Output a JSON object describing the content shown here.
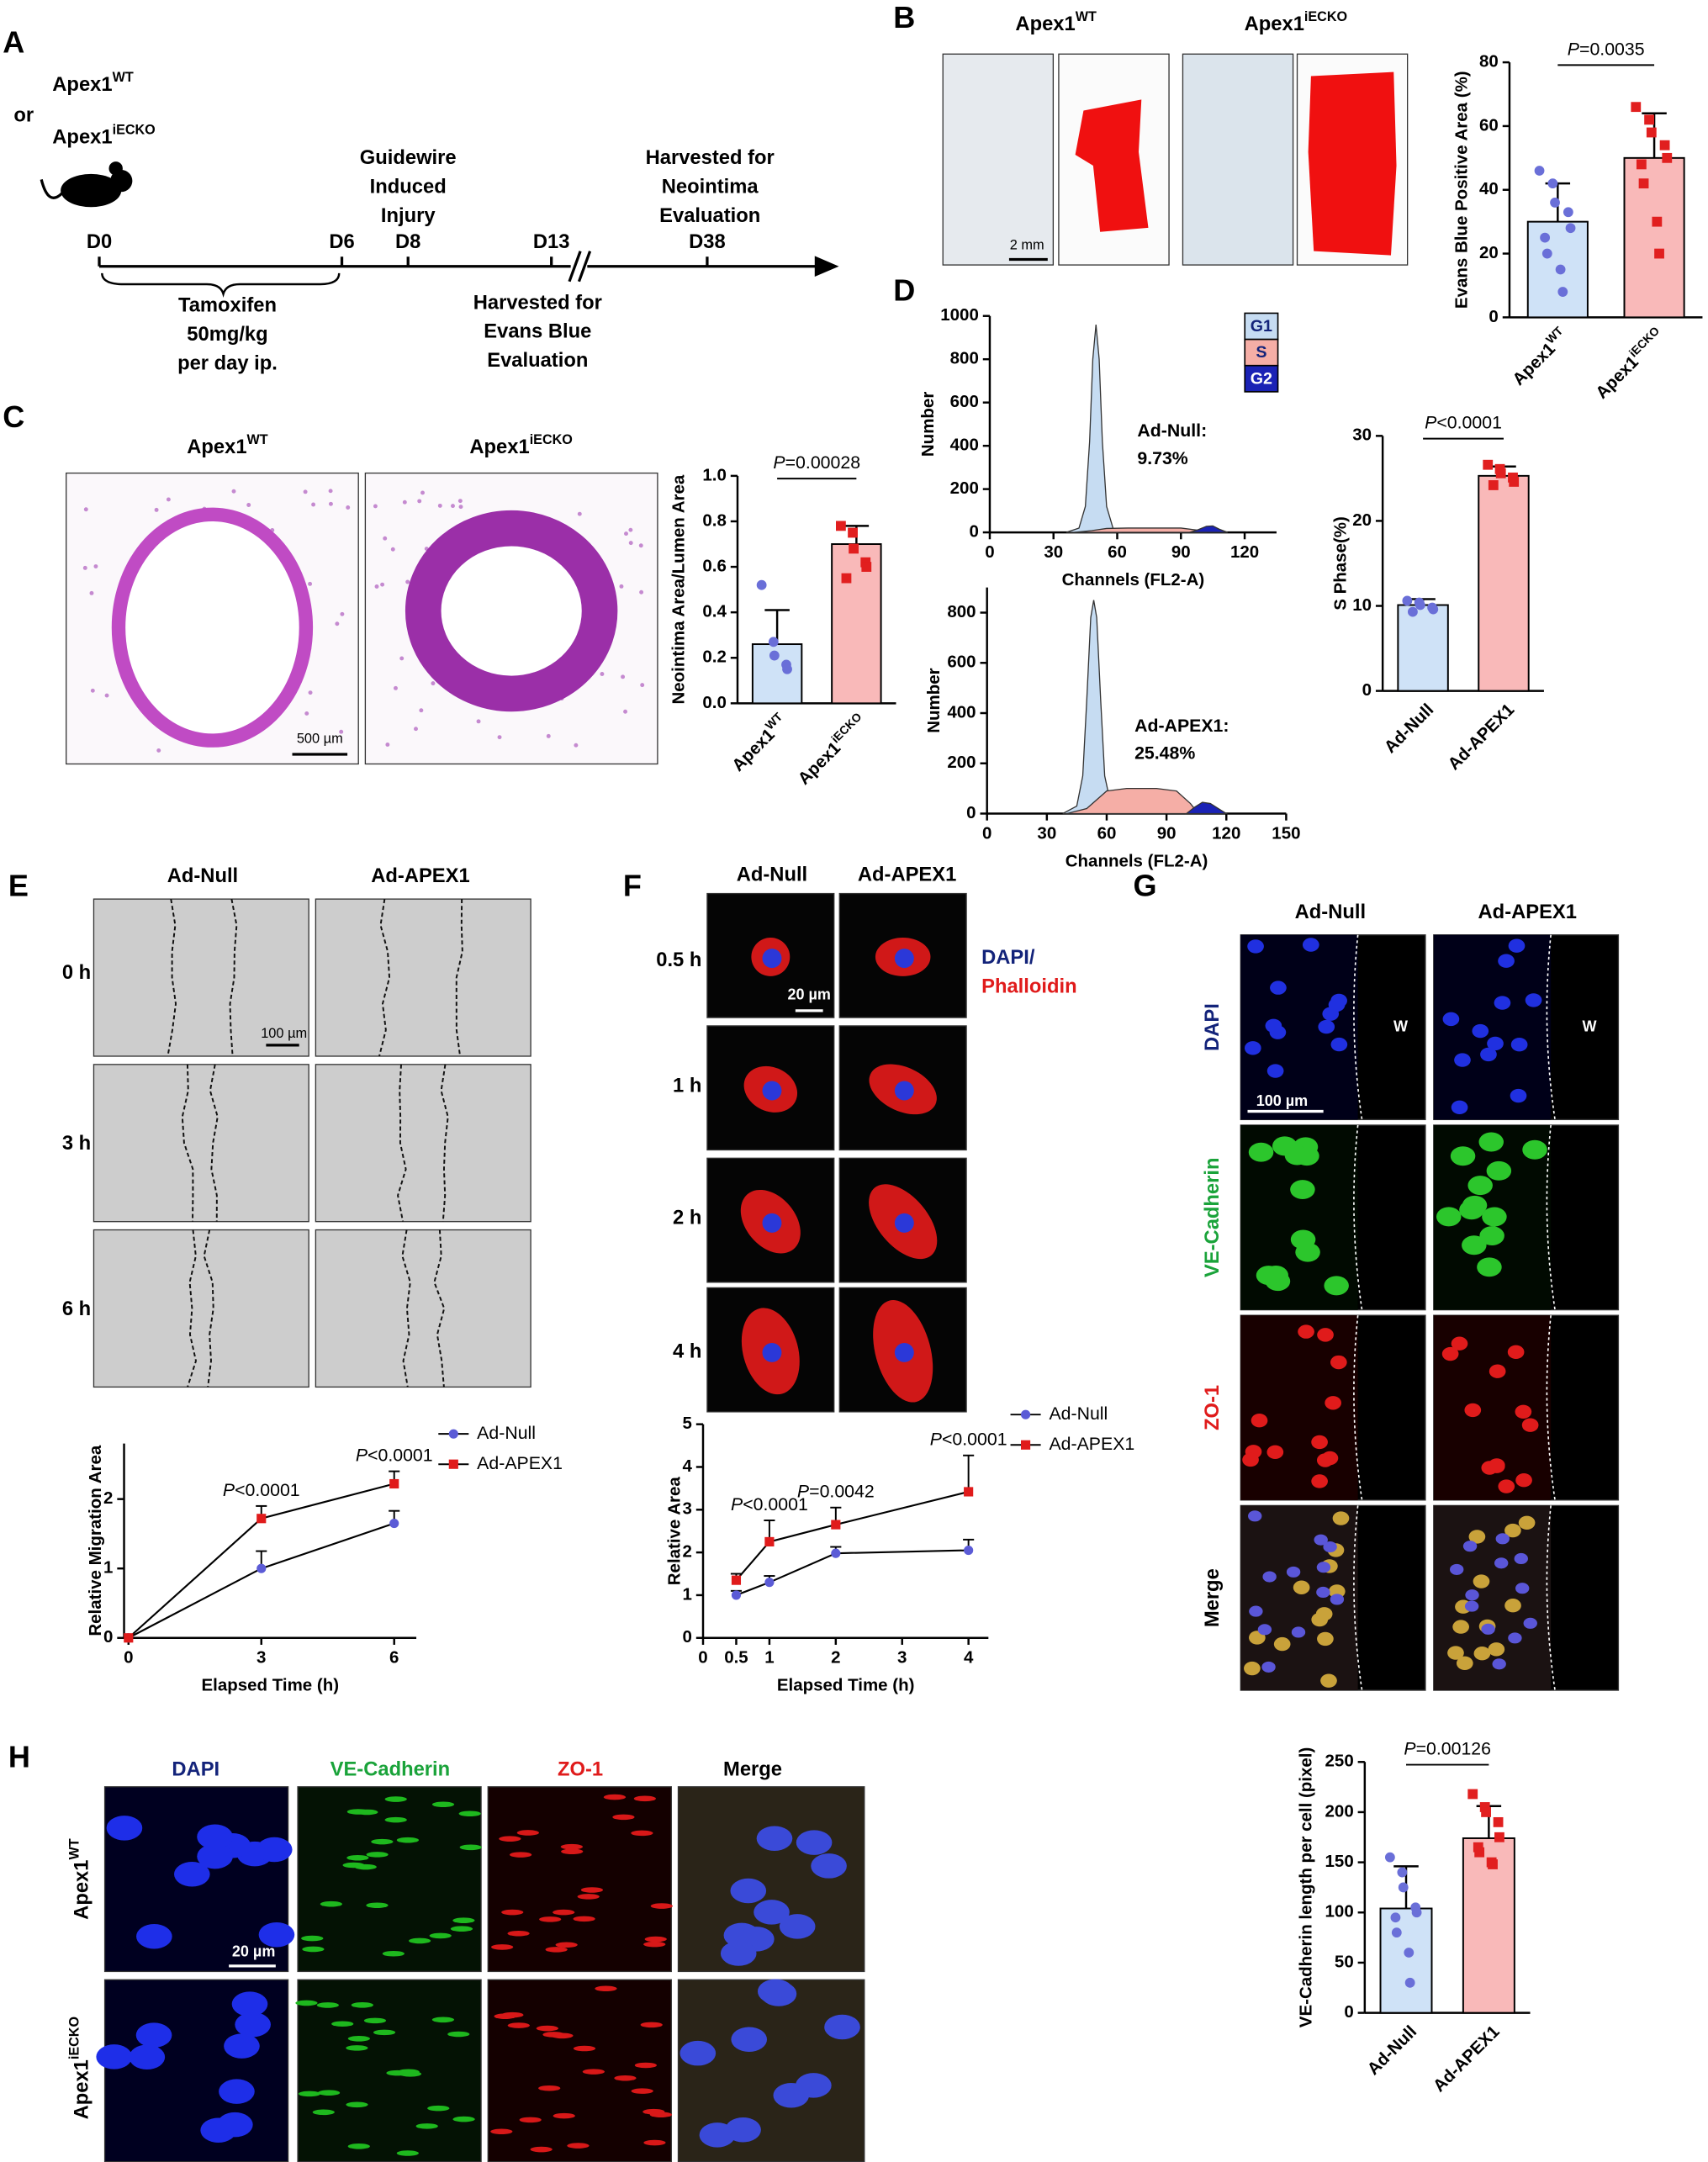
{
  "figure": {
    "panels": [
      "A",
      "B",
      "C",
      "D",
      "E",
      "F",
      "G",
      "H"
    ],
    "a": {
      "genotypes": [
        "Apex1WT",
        "Apex1iECKO"
      ],
      "or": "or",
      "days": [
        "D0",
        "D6",
        "D8",
        "D13",
        "D38"
      ],
      "injury": [
        "Guidewire",
        "Induced",
        "Injury"
      ],
      "neointima": [
        "Harvested for",
        "Neointima",
        "Evaluation"
      ],
      "tamoxifen": [
        "Tamoxifen",
        "50mg/kg",
        "per day ip."
      ],
      "evans": [
        "Harvested for",
        "Evans Blue",
        "Evaluation"
      ]
    },
    "b": {
      "columns": [
        "Apex1WT",
        "Apex1iECKO"
      ],
      "scale": "2 mm"
    },
    "c": {
      "columns": [
        "Apex1WT",
        "Apex1iECKO"
      ],
      "scale": "500 µm"
    },
    "e": {
      "columns": [
        "Ad-Null",
        "Ad-APEX1"
      ],
      "rows": [
        "0 h",
        "3 h",
        "6 h"
      ],
      "scale": "100 µm"
    },
    "f": {
      "columns": [
        "Ad-Null",
        "Ad-APEX1"
      ],
      "rows": [
        "0.5 h",
        "1 h",
        "2 h",
        "4 h"
      ],
      "stain": [
        "DAPI/",
        "Phalloidin"
      ],
      "scale": "20 µm"
    },
    "g": {
      "columns": [
        "Ad-Null",
        "Ad-APEX1"
      ],
      "rows": [
        "DAPI",
        "VE-Cadherin",
        "ZO-1",
        "Merge"
      ],
      "wound": [
        "W",
        "W"
      ],
      "scale": "100 µm"
    },
    "h": {
      "columns": [
        "DAPI",
        "VE-Cadherin",
        "ZO-1",
        "Merge"
      ],
      "rows": [
        "Apex1WT",
        "Apex1iECKO"
      ],
      "scale": "20 µm"
    }
  },
  "chart_data": [
    {
      "type": "bar",
      "ylabel": "Evans Blue Positive Area (%)",
      "annotation": "P=0.0035",
      "categories": [
        "Apex1WT",
        "Apex1iECKO"
      ],
      "values": [
        30,
        50
      ],
      "errors": [
        12,
        14
      ],
      "points": [
        [
          46,
          42,
          36,
          33,
          28,
          25,
          20,
          15,
          8
        ],
        [
          66,
          62,
          58,
          54,
          50,
          48,
          42,
          30,
          20
        ]
      ],
      "colors": [
        "#cfe2f7",
        "#f9b9b9"
      ],
      "point_colors": [
        "#6a6fd8",
        "#e11f1f"
      ],
      "ylim": [
        0,
        80
      ],
      "yticks": [
        0,
        20,
        40,
        60,
        80
      ]
    },
    {
      "type": "bar",
      "ylabel": "Neointima Area/Lumen Area",
      "annotation": "P=0.00028",
      "categories": [
        "Apex1WT",
        "Apex1iECKO"
      ],
      "values": [
        0.26,
        0.7
      ],
      "errors": [
        0.15,
        0.08
      ],
      "points": [
        [
          0.52,
          0.27,
          0.21,
          0.17,
          0.15
        ],
        [
          0.78,
          0.75,
          0.68,
          0.62,
          0.6,
          0.55
        ]
      ],
      "colors": [
        "#cfe2f7",
        "#f9b9b9"
      ],
      "point_colors": [
        "#6a6fd8",
        "#e11f1f"
      ],
      "ylim": [
        0,
        1
      ],
      "yticks": [
        {
          "value": 0,
          "label": "0.0"
        },
        0.2,
        0.4,
        0.6,
        0.8,
        {
          "value": 1,
          "label": "1.0"
        }
      ]
    },
    {
      "type": "area",
      "ylabel": "Number",
      "xlabel": "Channels (FL2-A)",
      "annotation": [
        "Ad-Null:",
        "9.73%"
      ],
      "legend": "right",
      "xlim": [
        0,
        135
      ],
      "xticks": [
        0,
        30,
        60,
        90,
        120
      ],
      "ylim": [
        0,
        1000
      ],
      "yticks": [
        0,
        200,
        400,
        600,
        800,
        1000
      ],
      "series": [
        {
          "name": "G1",
          "color": "#c6dcf2",
          "x": [
            36,
            42,
            45,
            47,
            48.5,
            50,
            51.5,
            53,
            55,
            58,
            62
          ],
          "values": [
            0,
            20,
            120,
            420,
            800,
            960,
            800,
            420,
            120,
            20,
            0
          ]
        },
        {
          "name": "S",
          "color": "#f5aea6",
          "x": [
            40,
            48,
            55,
            65,
            90,
            98,
            102
          ],
          "values": [
            0,
            8,
            18,
            20,
            20,
            10,
            0
          ]
        },
        {
          "name": "G2",
          "color": "#1a22b5",
          "x": [
            94,
            98,
            102,
            105,
            108,
            112
          ],
          "values": [
            0,
            12,
            28,
            30,
            15,
            0
          ]
        }
      ]
    },
    {
      "type": "area",
      "ylabel": "Number",
      "xlabel": "Channels (FL2-A)",
      "annotation": [
        "Ad-APEX1:",
        "25.48%"
      ],
      "xlim": [
        0,
        150
      ],
      "xticks": [
        0,
        30,
        60,
        90,
        120,
        150
      ],
      "ylim": [
        0,
        900
      ],
      "yticks": [
        0,
        200,
        400,
        600,
        800
      ],
      "series": [
        {
          "name": "G1",
          "color": "#c6dcf2",
          "x": [
            38,
            45,
            48,
            50,
            52,
            53.5,
            55,
            57,
            59,
            62,
            66
          ],
          "values": [
            0,
            30,
            150,
            450,
            780,
            850,
            780,
            450,
            150,
            40,
            0
          ]
        },
        {
          "name": "S",
          "color": "#f5aea6",
          "x": [
            40,
            50,
            60,
            70,
            85,
            95,
            102,
            106
          ],
          "values": [
            0,
            20,
            90,
            100,
            100,
            90,
            40,
            0
          ]
        },
        {
          "name": "G2",
          "color": "#1a22b5",
          "x": [
            100,
            104,
            108,
            112,
            116,
            120
          ],
          "values": [
            0,
            25,
            45,
            40,
            20,
            0
          ]
        }
      ]
    },
    {
      "type": "bar",
      "ylabel": "S Phase(%)",
      "annotation": "P<0.0001",
      "categories": [
        "Ad-Null",
        "Ad-APEX1"
      ],
      "values": [
        10.1,
        25.3
      ],
      "errors": [
        0.7,
        1.1
      ],
      "points": [
        [
          10.6,
          10.4,
          10.1,
          9.8,
          9.6,
          9.3
        ],
        [
          26.6,
          26.1,
          25.6,
          25.1,
          24.6,
          24.2
        ]
      ],
      "colors": [
        "#cfe2f7",
        "#f9b9b9"
      ],
      "point_colors": [
        "#6a6fd8",
        "#e11f1f"
      ],
      "ylim": [
        0,
        30
      ],
      "yticks": [
        0,
        10,
        20,
        30
      ]
    },
    {
      "type": "line",
      "ylabel": "Relative Migration Area",
      "xlabel": "Elapsed Time (h)",
      "legend": "right",
      "x": [
        0,
        3,
        6
      ],
      "xlim": [
        -0.1,
        6.5
      ],
      "xticks": [
        0,
        3,
        6
      ],
      "ylim": [
        0,
        2.8
      ],
      "yticks": [
        0,
        1,
        2
      ],
      "series": [
        {
          "name": "Ad-Null",
          "color": "#5b5bd6",
          "marker": "circle",
          "values": [
            0,
            1.0,
            1.65
          ],
          "errors": [
            0,
            0.25,
            0.18
          ]
        },
        {
          "name": "Ad-APEX1",
          "color": "#e01b1b",
          "marker": "square",
          "values": [
            0,
            1.72,
            2.22
          ],
          "errors": [
            0,
            0.18,
            0.18
          ]
        }
      ],
      "annotations": [
        {
          "x": 3,
          "text": "P<0.0001"
        },
        {
          "x": 6,
          "text": "P<0.0001"
        }
      ]
    },
    {
      "type": "line",
      "ylabel": "Relative Area",
      "xlabel": "Elapsed Time (h)",
      "legend": "right",
      "x": [
        0.5,
        1,
        2,
        4
      ],
      "xlim": [
        0,
        4.3
      ],
      "xticks": [
        0,
        0.5,
        1,
        2,
        3,
        4
      ],
      "ylim": [
        0,
        5
      ],
      "yticks": [
        0,
        1,
        2,
        3,
        4,
        5
      ],
      "series": [
        {
          "name": "Ad-Null",
          "color": "#5b5bd6",
          "marker": "circle",
          "values": [
            1.0,
            1.3,
            1.98,
            2.05
          ],
          "errors": [
            0.1,
            0.15,
            0.15,
            0.25
          ]
        },
        {
          "name": "Ad-APEX1",
          "color": "#e01b1b",
          "marker": "square",
          "values": [
            1.35,
            2.25,
            2.65,
            3.42
          ],
          "errors": [
            0.15,
            0.5,
            0.4,
            0.85
          ]
        }
      ],
      "annotations": [
        {
          "x": 1,
          "text": "P<0.0001"
        },
        {
          "x": 2,
          "text": "P=0.0042"
        },
        {
          "x": 4,
          "text": "P<0.0001"
        }
      ]
    },
    {
      "type": "bar",
      "ylabel": "VE-Cadherin length per cell (pixel)",
      "annotation": "P=0.00126",
      "categories": [
        "Ad-Null",
        "Ad-APEX1"
      ],
      "values": [
        104,
        174
      ],
      "errors": [
        42,
        32
      ],
      "points": [
        [
          155,
          140,
          125,
          105,
          100,
          95,
          80,
          60,
          30
        ],
        [
          218,
          205,
          200,
          190,
          175,
          165,
          160,
          150,
          148
        ]
      ],
      "colors": [
        "#cfe2f7",
        "#f9b9b9"
      ],
      "point_colors": [
        "#6a6fd8",
        "#e11f1f"
      ],
      "ylim": [
        0,
        250
      ],
      "yticks": [
        0,
        50,
        100,
        150,
        200,
        250
      ]
    }
  ]
}
